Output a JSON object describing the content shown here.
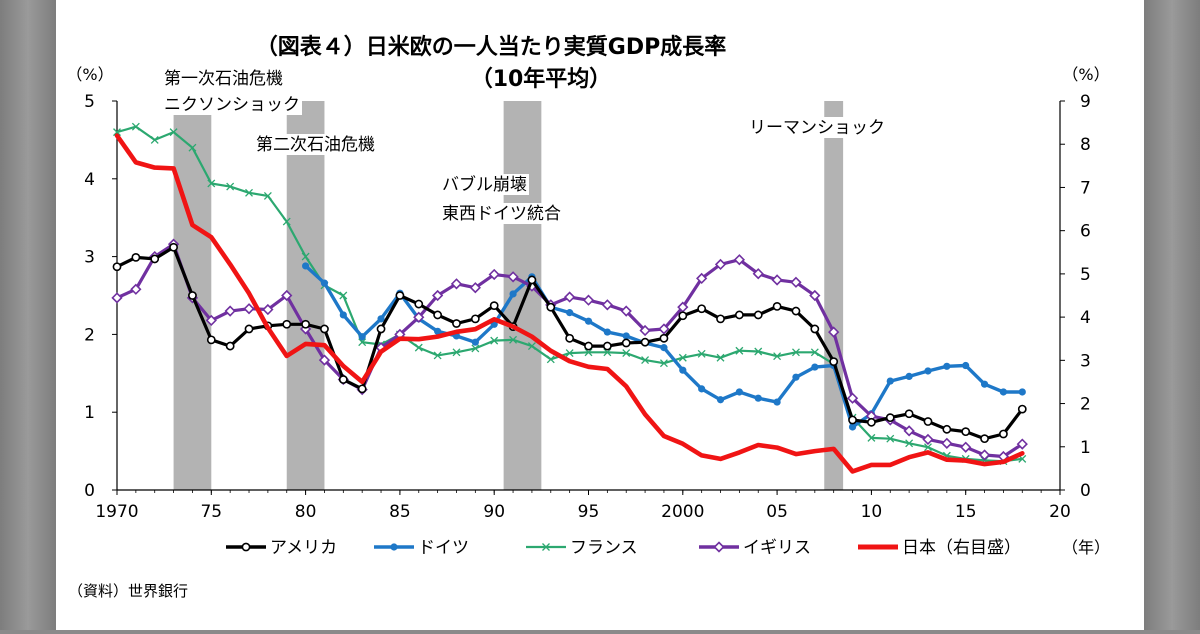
{
  "chart_data": {
    "type": "line",
    "title_line1": "（図表４）日米欧の一人当たり実質GDP成長率",
    "title_line2": "（10年平均）",
    "left_axis_label": "（%）",
    "right_axis_label": "（%）",
    "x_unit_label": "（年）",
    "source_note": "（資料）世界銀行",
    "x_ticks": [
      {
        "v": 1970,
        "label": "1970"
      },
      {
        "v": 1975,
        "label": "75"
      },
      {
        "v": 1980,
        "label": "80"
      },
      {
        "v": 1985,
        "label": "85"
      },
      {
        "v": 1990,
        "label": "90"
      },
      {
        "v": 1995,
        "label": "95"
      },
      {
        "v": 2000,
        "label": "2000"
      },
      {
        "v": 2005,
        "label": "05"
      },
      {
        "v": 2010,
        "label": "10"
      },
      {
        "v": 2015,
        "label": "15"
      },
      {
        "v": 2020,
        "label": "20"
      }
    ],
    "xlim": [
      1970,
      2020
    ],
    "y_left": {
      "min": 0,
      "max": 5,
      "ticks": [
        0,
        1,
        2,
        3,
        4,
        5
      ]
    },
    "y_right": {
      "min": 0,
      "max": 9,
      "ticks": [
        0,
        1,
        2,
        3,
        4,
        5,
        6,
        7,
        8,
        9
      ]
    },
    "shaded_periods": [
      {
        "start": 1973,
        "end": 1975,
        "label_lines": [
          "第一次石油危機",
          "ニクソンショック"
        ]
      },
      {
        "start": 1979,
        "end": 1981,
        "label_lines": [
          "第二次石油危機"
        ]
      },
      {
        "start": 1990.5,
        "end": 1992.5,
        "label_lines": [
          "バブル崩壊",
          "東西ドイツ統合"
        ]
      },
      {
        "start": 2007.5,
        "end": 2008.5,
        "label_lines": [
          "リーマンショック"
        ]
      }
    ],
    "series": [
      {
        "key": "usa",
        "name": "アメリカ",
        "color": "#000000",
        "axis": "left",
        "marker": "circle",
        "x": [
          1970,
          1971,
          1972,
          1973,
          1974,
          1975,
          1976,
          1977,
          1978,
          1979,
          1980,
          1981,
          1982,
          1983,
          1984,
          1985,
          1986,
          1987,
          1988,
          1989,
          1990,
          1991,
          1992,
          1993,
          1994,
          1995,
          1996,
          1997,
          1998,
          1999,
          2000,
          2001,
          2002,
          2003,
          2004,
          2005,
          2006,
          2007,
          2008,
          2009,
          2010,
          2011,
          2012,
          2013,
          2014,
          2015,
          2016,
          2017,
          2018
        ],
        "values": [
          2.87,
          2.99,
          2.97,
          3.12,
          2.5,
          1.93,
          1.85,
          2.07,
          2.11,
          2.13,
          2.13,
          2.07,
          1.42,
          1.3,
          2.07,
          2.5,
          2.39,
          2.25,
          2.14,
          2.2,
          2.37,
          2.1,
          2.7,
          2.35,
          1.95,
          1.85,
          1.85,
          1.89,
          1.9,
          1.95,
          2.24,
          2.33,
          2.2,
          2.25,
          2.25,
          2.36,
          2.3,
          2.07,
          1.65,
          0.9,
          0.87,
          0.93,
          0.98,
          0.88,
          0.78,
          0.75,
          0.66,
          0.72,
          1.04
        ]
      },
      {
        "key": "germany",
        "name": "ドイツ",
        "color": "#1e78c8",
        "axis": "left",
        "marker": "dot",
        "x": [
          1980,
          1981,
          1982,
          1983,
          1984,
          1985,
          1986,
          1987,
          1988,
          1989,
          1990,
          1991,
          1992,
          1993,
          1994,
          1995,
          1996,
          1997,
          1998,
          1999,
          2000,
          2001,
          2002,
          2003,
          2004,
          2005,
          2006,
          2007,
          2008,
          2009,
          2010,
          2011,
          2012,
          2013,
          2014,
          2015,
          2016,
          2017,
          2018
        ],
        "values": [
          2.88,
          2.66,
          2.25,
          1.97,
          2.2,
          2.53,
          2.2,
          2.04,
          1.98,
          1.9,
          2.13,
          2.52,
          2.74,
          2.35,
          2.28,
          2.17,
          2.03,
          1.98,
          1.89,
          1.83,
          1.54,
          1.3,
          1.16,
          1.26,
          1.18,
          1.13,
          1.45,
          1.58,
          1.6,
          0.81,
          0.98,
          1.4,
          1.46,
          1.53,
          1.59,
          1.6,
          1.36,
          1.26,
          1.26
        ]
      },
      {
        "key": "france",
        "name": "フランス",
        "color": "#2ca870",
        "axis": "left",
        "marker": "x",
        "x": [
          1970,
          1971,
          1972,
          1973,
          1974,
          1975,
          1976,
          1977,
          1978,
          1979,
          1980,
          1981,
          1982,
          1983,
          1984,
          1985,
          1986,
          1987,
          1988,
          1989,
          1990,
          1991,
          1992,
          1993,
          1994,
          1995,
          1996,
          1997,
          1998,
          1999,
          2000,
          2001,
          2002,
          2003,
          2004,
          2005,
          2006,
          2007,
          2008,
          2009,
          2010,
          2011,
          2012,
          2013,
          2014,
          2015,
          2016,
          2017,
          2018
        ],
        "values": [
          4.6,
          4.67,
          4.5,
          4.6,
          4.4,
          3.94,
          3.9,
          3.82,
          3.78,
          3.45,
          3.0,
          2.63,
          2.5,
          1.9,
          1.87,
          2.0,
          1.83,
          1.73,
          1.77,
          1.82,
          1.92,
          1.93,
          1.85,
          1.68,
          1.76,
          1.77,
          1.77,
          1.76,
          1.67,
          1.63,
          1.7,
          1.75,
          1.7,
          1.79,
          1.78,
          1.72,
          1.77,
          1.77,
          1.62,
          0.93,
          0.67,
          0.66,
          0.6,
          0.55,
          0.44,
          0.4,
          0.38,
          0.37,
          0.4
        ]
      },
      {
        "key": "uk",
        "name": "イギリス",
        "color": "#7030a0",
        "axis": "left",
        "marker": "diamond",
        "x": [
          1970,
          1971,
          1972,
          1973,
          1974,
          1975,
          1976,
          1977,
          1978,
          1979,
          1980,
          1981,
          1982,
          1983,
          1984,
          1985,
          1986,
          1987,
          1988,
          1989,
          1990,
          1991,
          1992,
          1993,
          1994,
          1995,
          1996,
          1997,
          1998,
          1999,
          2000,
          2001,
          2002,
          2003,
          2004,
          2005,
          2006,
          2007,
          2008,
          2009,
          2010,
          2011,
          2012,
          2013,
          2014,
          2015,
          2016,
          2017,
          2018
        ],
        "values": [
          2.47,
          2.58,
          3.0,
          3.16,
          2.47,
          2.18,
          2.3,
          2.33,
          2.32,
          2.5,
          2.07,
          1.67,
          1.42,
          1.29,
          1.83,
          2.0,
          2.22,
          2.5,
          2.65,
          2.6,
          2.77,
          2.74,
          2.62,
          2.38,
          2.48,
          2.44,
          2.38,
          2.3,
          2.05,
          2.07,
          2.35,
          2.72,
          2.9,
          2.96,
          2.78,
          2.7,
          2.67,
          2.5,
          2.03,
          1.18,
          0.95,
          0.9,
          0.76,
          0.65,
          0.6,
          0.55,
          0.45,
          0.43,
          0.59
        ]
      },
      {
        "key": "japan",
        "name": "日本（右目盛）",
        "color": "#f01414",
        "axis": "right",
        "marker": "none",
        "x": [
          1970,
          1971,
          1972,
          1973,
          1974,
          1975,
          1976,
          1977,
          1978,
          1979,
          1980,
          1981,
          1982,
          1983,
          1984,
          1985,
          1986,
          1987,
          1988,
          1989,
          1990,
          1991,
          1992,
          1993,
          1994,
          1995,
          1996,
          1997,
          1998,
          1999,
          2000,
          2001,
          2002,
          2003,
          2004,
          2005,
          2006,
          2007,
          2008,
          2009,
          2010,
          2011,
          2012,
          2013,
          2014,
          2015,
          2016,
          2017,
          2018
        ],
        "values": [
          8.2,
          7.58,
          7.46,
          7.44,
          6.13,
          5.85,
          5.22,
          4.55,
          3.75,
          3.1,
          3.38,
          3.35,
          2.87,
          2.5,
          3.2,
          3.5,
          3.49,
          3.55,
          3.66,
          3.72,
          3.95,
          3.78,
          3.55,
          3.22,
          2.98,
          2.85,
          2.8,
          2.4,
          1.75,
          1.25,
          1.07,
          0.8,
          0.72,
          0.87,
          1.04,
          0.98,
          0.83,
          0.9,
          0.95,
          0.43,
          0.58,
          0.58,
          0.76,
          0.87,
          0.7,
          0.68,
          0.6,
          0.65,
          0.85
        ]
      }
    ]
  }
}
